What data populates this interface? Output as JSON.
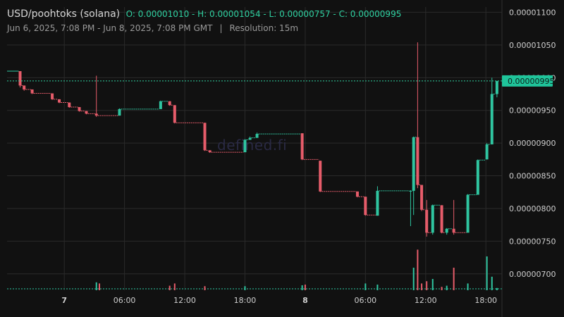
{
  "header": {
    "pair": "USD/poohtoks (solana)",
    "ohlc": "O: 0.00001010 - H: 0.00001054 - L: 0.00000757 - C: 0.00000995",
    "range": "Jun 6, 2025, 7:08 PM - Jun 8, 2025, 7:08 PM GMT",
    "separator": "|",
    "resolution": "Resolution: 15m"
  },
  "watermark": "defined.fi",
  "colors": {
    "up": "#2fc5a0",
    "down": "#e65c6a",
    "background": "#111111",
    "grid": "#2a2a2a",
    "price_line": "#2fd1a1"
  },
  "chart_data": {
    "type": "candlestick",
    "x_ticks": [
      "7",
      "06:00",
      "12:00",
      "18:00",
      "8",
      "06:00",
      "12:00",
      "18:00"
    ],
    "x_ticks_hours": [
      5,
      11,
      17,
      23,
      29,
      35,
      41,
      47
    ],
    "y_ticks": [
      "0.00001100",
      "0.00001050",
      "0.00001000",
      "0.00000950",
      "0.00000900",
      "0.00000850",
      "0.00000800",
      "0.00000750",
      "0.00000700"
    ],
    "y_range": [
      6.75e-06,
      1.108e-05
    ],
    "x_range_hours": [
      -0.7,
      48.6
    ],
    "current_price": "0.00000995",
    "current_price_value": 9.95e-06,
    "candles": [
      {
        "t": 0.6,
        "o": 1.01e-05,
        "h": 1.01e-05,
        "l": 9.85e-06,
        "c": 9.88e-06
      },
      {
        "t": 1.0,
        "o": 9.88e-06,
        "h": 9.88e-06,
        "l": 9.8e-06,
        "c": 9.82e-06
      },
      {
        "t": 1.8,
        "o": 9.82e-06,
        "h": 9.82e-06,
        "l": 9.75e-06,
        "c": 9.76e-06
      },
      {
        "t": 3.8,
        "o": 9.76e-06,
        "h": 9.76e-06,
        "l": 9.66e-06,
        "c": 9.67e-06
      },
      {
        "t": 4.5,
        "o": 9.67e-06,
        "h": 9.67e-06,
        "l": 9.61e-06,
        "c": 9.62e-06
      },
      {
        "t": 5.5,
        "o": 9.62e-06,
        "h": 9.62e-06,
        "l": 9.54e-06,
        "c": 9.55e-06
      },
      {
        "t": 6.5,
        "o": 9.55e-06,
        "h": 9.55e-06,
        "l": 9.48e-06,
        "c": 9.49e-06
      },
      {
        "t": 7.2,
        "o": 9.49e-06,
        "h": 9.49e-06,
        "l": 9.44e-06,
        "c": 9.45e-06
      },
      {
        "t": 8.2,
        "o": 9.45e-06,
        "h": 1.003e-05,
        "l": 9.4e-06,
        "c": 9.42e-06
      },
      {
        "t": 10.5,
        "o": 9.42e-06,
        "h": 9.53e-06,
        "l": 9.42e-06,
        "c": 9.52e-06
      },
      {
        "t": 14.6,
        "o": 9.52e-06,
        "h": 9.65e-06,
        "l": 9.52e-06,
        "c": 9.64e-06
      },
      {
        "t": 15.5,
        "o": 9.64e-06,
        "h": 9.64e-06,
        "l": 9.57e-06,
        "c": 9.58e-06
      },
      {
        "t": 16.0,
        "o": 9.58e-06,
        "h": 9.58e-06,
        "l": 9.3e-06,
        "c": 9.31e-06
      },
      {
        "t": 19.0,
        "o": 9.31e-06,
        "h": 9.31e-06,
        "l": 8.88e-06,
        "c": 8.89e-06
      },
      {
        "t": 19.5,
        "o": 8.89e-06,
        "h": 8.89e-06,
        "l": 8.85e-06,
        "c": 8.86e-06
      },
      {
        "t": 23.0,
        "o": 8.86e-06,
        "h": 9.06e-06,
        "l": 8.86e-06,
        "c": 9.05e-06
      },
      {
        "t": 23.5,
        "o": 9.05e-06,
        "h": 9.1e-06,
        "l": 9.05e-06,
        "c": 9.08e-06
      },
      {
        "t": 24.2,
        "o": 9.08e-06,
        "h": 9.16e-06,
        "l": 9.08e-06,
        "c": 9.14e-06
      },
      {
        "t": 28.7,
        "o": 9.15e-06,
        "h": 9.15e-06,
        "l": 8.74e-06,
        "c": 8.75e-06
      },
      {
        "t": 30.5,
        "o": 8.73e-06,
        "h": 8.73e-06,
        "l": 8.25e-06,
        "c": 8.26e-06
      },
      {
        "t": 34.2,
        "o": 8.26e-06,
        "h": 8.26e-06,
        "l": 8.17e-06,
        "c": 8.18e-06
      },
      {
        "t": 35.0,
        "o": 8.18e-06,
        "h": 8.18e-06,
        "l": 7.89e-06,
        "c": 7.9e-06
      },
      {
        "t": 36.2,
        "o": 7.89e-06,
        "h": 8.34e-06,
        "l": 7.89e-06,
        "c": 8.27e-06
      },
      {
        "t": 39.5,
        "o": 8.27e-06,
        "h": 8.28e-06,
        "l": 7.73e-06,
        "c": 8.27e-06
      },
      {
        "t": 39.8,
        "o": 8.27e-06,
        "h": 9.1e-06,
        "l": 7.9e-06,
        "c": 9.09e-06
      },
      {
        "t": 40.2,
        "o": 9.09e-06,
        "h": 1.054e-05,
        "l": 8.31e-06,
        "c": 8.36e-06
      },
      {
        "t": 40.6,
        "o": 8.36e-06,
        "h": 8.36e-06,
        "l": 7.96e-06,
        "c": 7.98e-06
      },
      {
        "t": 41.1,
        "o": 7.98e-06,
        "h": 8.13e-06,
        "l": 7.57e-06,
        "c": 7.63e-06
      },
      {
        "t": 41.7,
        "o": 7.63e-06,
        "h": 8.06e-06,
        "l": 7.6e-06,
        "c": 8.05e-06
      },
      {
        "t": 42.6,
        "o": 8.05e-06,
        "h": 8.05e-06,
        "l": 7.62e-06,
        "c": 7.63e-06
      },
      {
        "t": 43.1,
        "o": 7.63e-06,
        "h": 7.7e-06,
        "l": 7.6e-06,
        "c": 7.69e-06
      },
      {
        "t": 43.8,
        "o": 7.69e-06,
        "h": 8.13e-06,
        "l": 7.6e-06,
        "c": 7.63e-06
      },
      {
        "t": 45.2,
        "o": 7.63e-06,
        "h": 8.22e-06,
        "l": 7.63e-06,
        "c": 8.21e-06
      },
      {
        "t": 46.2,
        "o": 8.21e-06,
        "h": 8.75e-06,
        "l": 8.21e-06,
        "c": 8.74e-06
      },
      {
        "t": 47.1,
        "o": 8.75e-06,
        "h": 9e-06,
        "l": 8.75e-06,
        "c": 8.98e-06
      },
      {
        "t": 47.6,
        "o": 8.98e-06,
        "h": 1e-05,
        "l": 8.98e-06,
        "c": 9.75e-06
      },
      {
        "t": 48.1,
        "o": 9.75e-06,
        "h": 9.95e-06,
        "l": 9.7e-06,
        "c": 9.95e-06
      }
    ],
    "volume": [
      {
        "t": 8.2,
        "v": 0.35,
        "up": true
      },
      {
        "t": 8.5,
        "v": 0.3,
        "up": false
      },
      {
        "t": 15.5,
        "v": 0.2,
        "up": false
      },
      {
        "t": 16.0,
        "v": 0.3,
        "up": false
      },
      {
        "t": 19.0,
        "v": 0.18,
        "up": false
      },
      {
        "t": 23.0,
        "v": 0.18,
        "up": true
      },
      {
        "t": 28.7,
        "v": 0.22,
        "up": true
      },
      {
        "t": 29.0,
        "v": 0.25,
        "up": false
      },
      {
        "t": 35.0,
        "v": 0.3,
        "up": true
      },
      {
        "t": 36.2,
        "v": 0.25,
        "up": true
      },
      {
        "t": 39.8,
        "v": 1.0,
        "up": true
      },
      {
        "t": 40.2,
        "v": 1.8,
        "up": false
      },
      {
        "t": 40.6,
        "v": 0.3,
        "up": false
      },
      {
        "t": 41.1,
        "v": 0.4,
        "up": false
      },
      {
        "t": 41.7,
        "v": 0.5,
        "up": true
      },
      {
        "t": 42.6,
        "v": 0.15,
        "up": false
      },
      {
        "t": 43.1,
        "v": 0.2,
        "up": true
      },
      {
        "t": 43.8,
        "v": 1.0,
        "up": false
      },
      {
        "t": 45.2,
        "v": 0.3,
        "up": true
      },
      {
        "t": 47.1,
        "v": 1.5,
        "up": true
      },
      {
        "t": 47.6,
        "v": 0.6,
        "up": true
      },
      {
        "t": 48.1,
        "v": 0.1,
        "up": true
      }
    ]
  }
}
